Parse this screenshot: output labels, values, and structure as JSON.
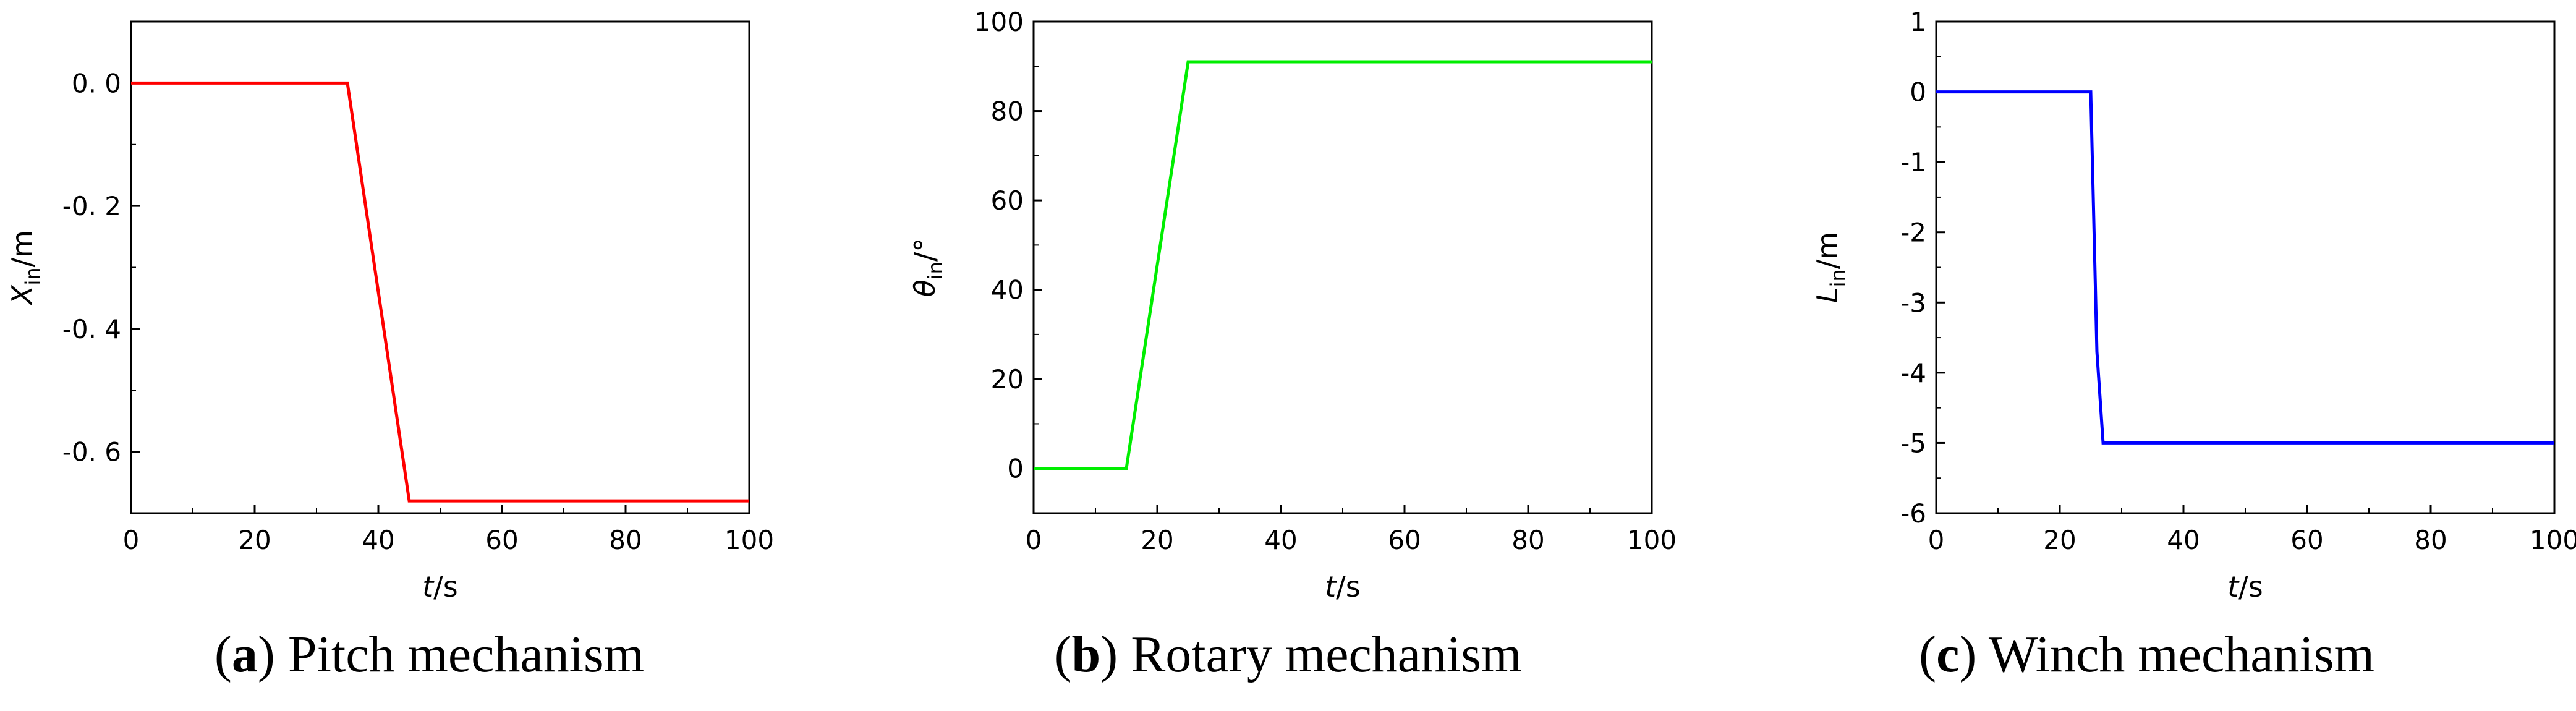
{
  "chart_data": [
    {
      "type": "line",
      "panel": "a",
      "caption_letter": "a",
      "caption_text": "Pitch mechanism",
      "title": "",
      "xlabel": {
        "symbol": "t",
        "unit": "/s"
      },
      "ylabel": {
        "symbol": "X",
        "subscript": "in",
        "unit": "/m"
      },
      "xlim": [
        0,
        100
      ],
      "ylim": [
        -0.7,
        0.1
      ],
      "xticks": [
        0,
        20,
        40,
        60,
        80,
        100
      ],
      "xtick_labels": [
        "0",
        "20",
        "40",
        "60",
        "80",
        "100"
      ],
      "yticks": [
        0.0,
        -0.2,
        -0.4,
        -0.6
      ],
      "ytick_labels": [
        "0. 0",
        "-0. 2",
        "-0. 4",
        "-0. 6"
      ],
      "grid": false,
      "series": [
        {
          "color": "#ff0000",
          "x": [
            0,
            35,
            45,
            100
          ],
          "y": [
            0,
            0,
            -0.68,
            -0.68
          ]
        }
      ]
    },
    {
      "type": "line",
      "panel": "b",
      "caption_letter": "b",
      "caption_text": "Rotary mechanism",
      "title": "",
      "xlabel": {
        "symbol": "t",
        "unit": "/s"
      },
      "ylabel": {
        "symbol": "θ",
        "subscript": "in",
        "unit": "/°"
      },
      "xlim": [
        0,
        100
      ],
      "ylim": [
        -10,
        100
      ],
      "xticks": [
        0,
        20,
        40,
        60,
        80,
        100
      ],
      "xtick_labels": [
        "0",
        "20",
        "40",
        "60",
        "80",
        "100"
      ],
      "yticks": [
        0,
        20,
        40,
        60,
        80,
        100
      ],
      "ytick_labels": [
        "0",
        "20",
        "40",
        "60",
        "80",
        "100"
      ],
      "grid": false,
      "series": [
        {
          "color": "#00ee00",
          "x": [
            0,
            15,
            25,
            100
          ],
          "y": [
            0,
            0,
            91,
            91
          ]
        }
      ]
    },
    {
      "type": "line",
      "panel": "c",
      "caption_letter": "c",
      "caption_text": "Winch mechanism",
      "title": "",
      "xlabel": {
        "symbol": "t",
        "unit": "/s"
      },
      "ylabel": {
        "symbol": "L",
        "subscript": "in",
        "unit": "/m"
      },
      "xlim": [
        0,
        100
      ],
      "ylim": [
        -6,
        1
      ],
      "xticks": [
        0,
        20,
        40,
        60,
        80,
        100
      ],
      "xtick_labels": [
        "0",
        "20",
        "40",
        "60",
        "80",
        "100"
      ],
      "yticks": [
        1,
        0,
        -1,
        -2,
        -3,
        -4,
        -5,
        -6
      ],
      "ytick_labels": [
        "1",
        "0",
        "-1",
        "-2",
        "-3",
        "-4",
        "-5",
        "-6"
      ],
      "grid": false,
      "series": [
        {
          "color": "#0000ff",
          "x": [
            0,
            25,
            26,
            27,
            100
          ],
          "y": [
            0,
            0,
            -3.7,
            -5,
            -5
          ]
        }
      ]
    }
  ]
}
